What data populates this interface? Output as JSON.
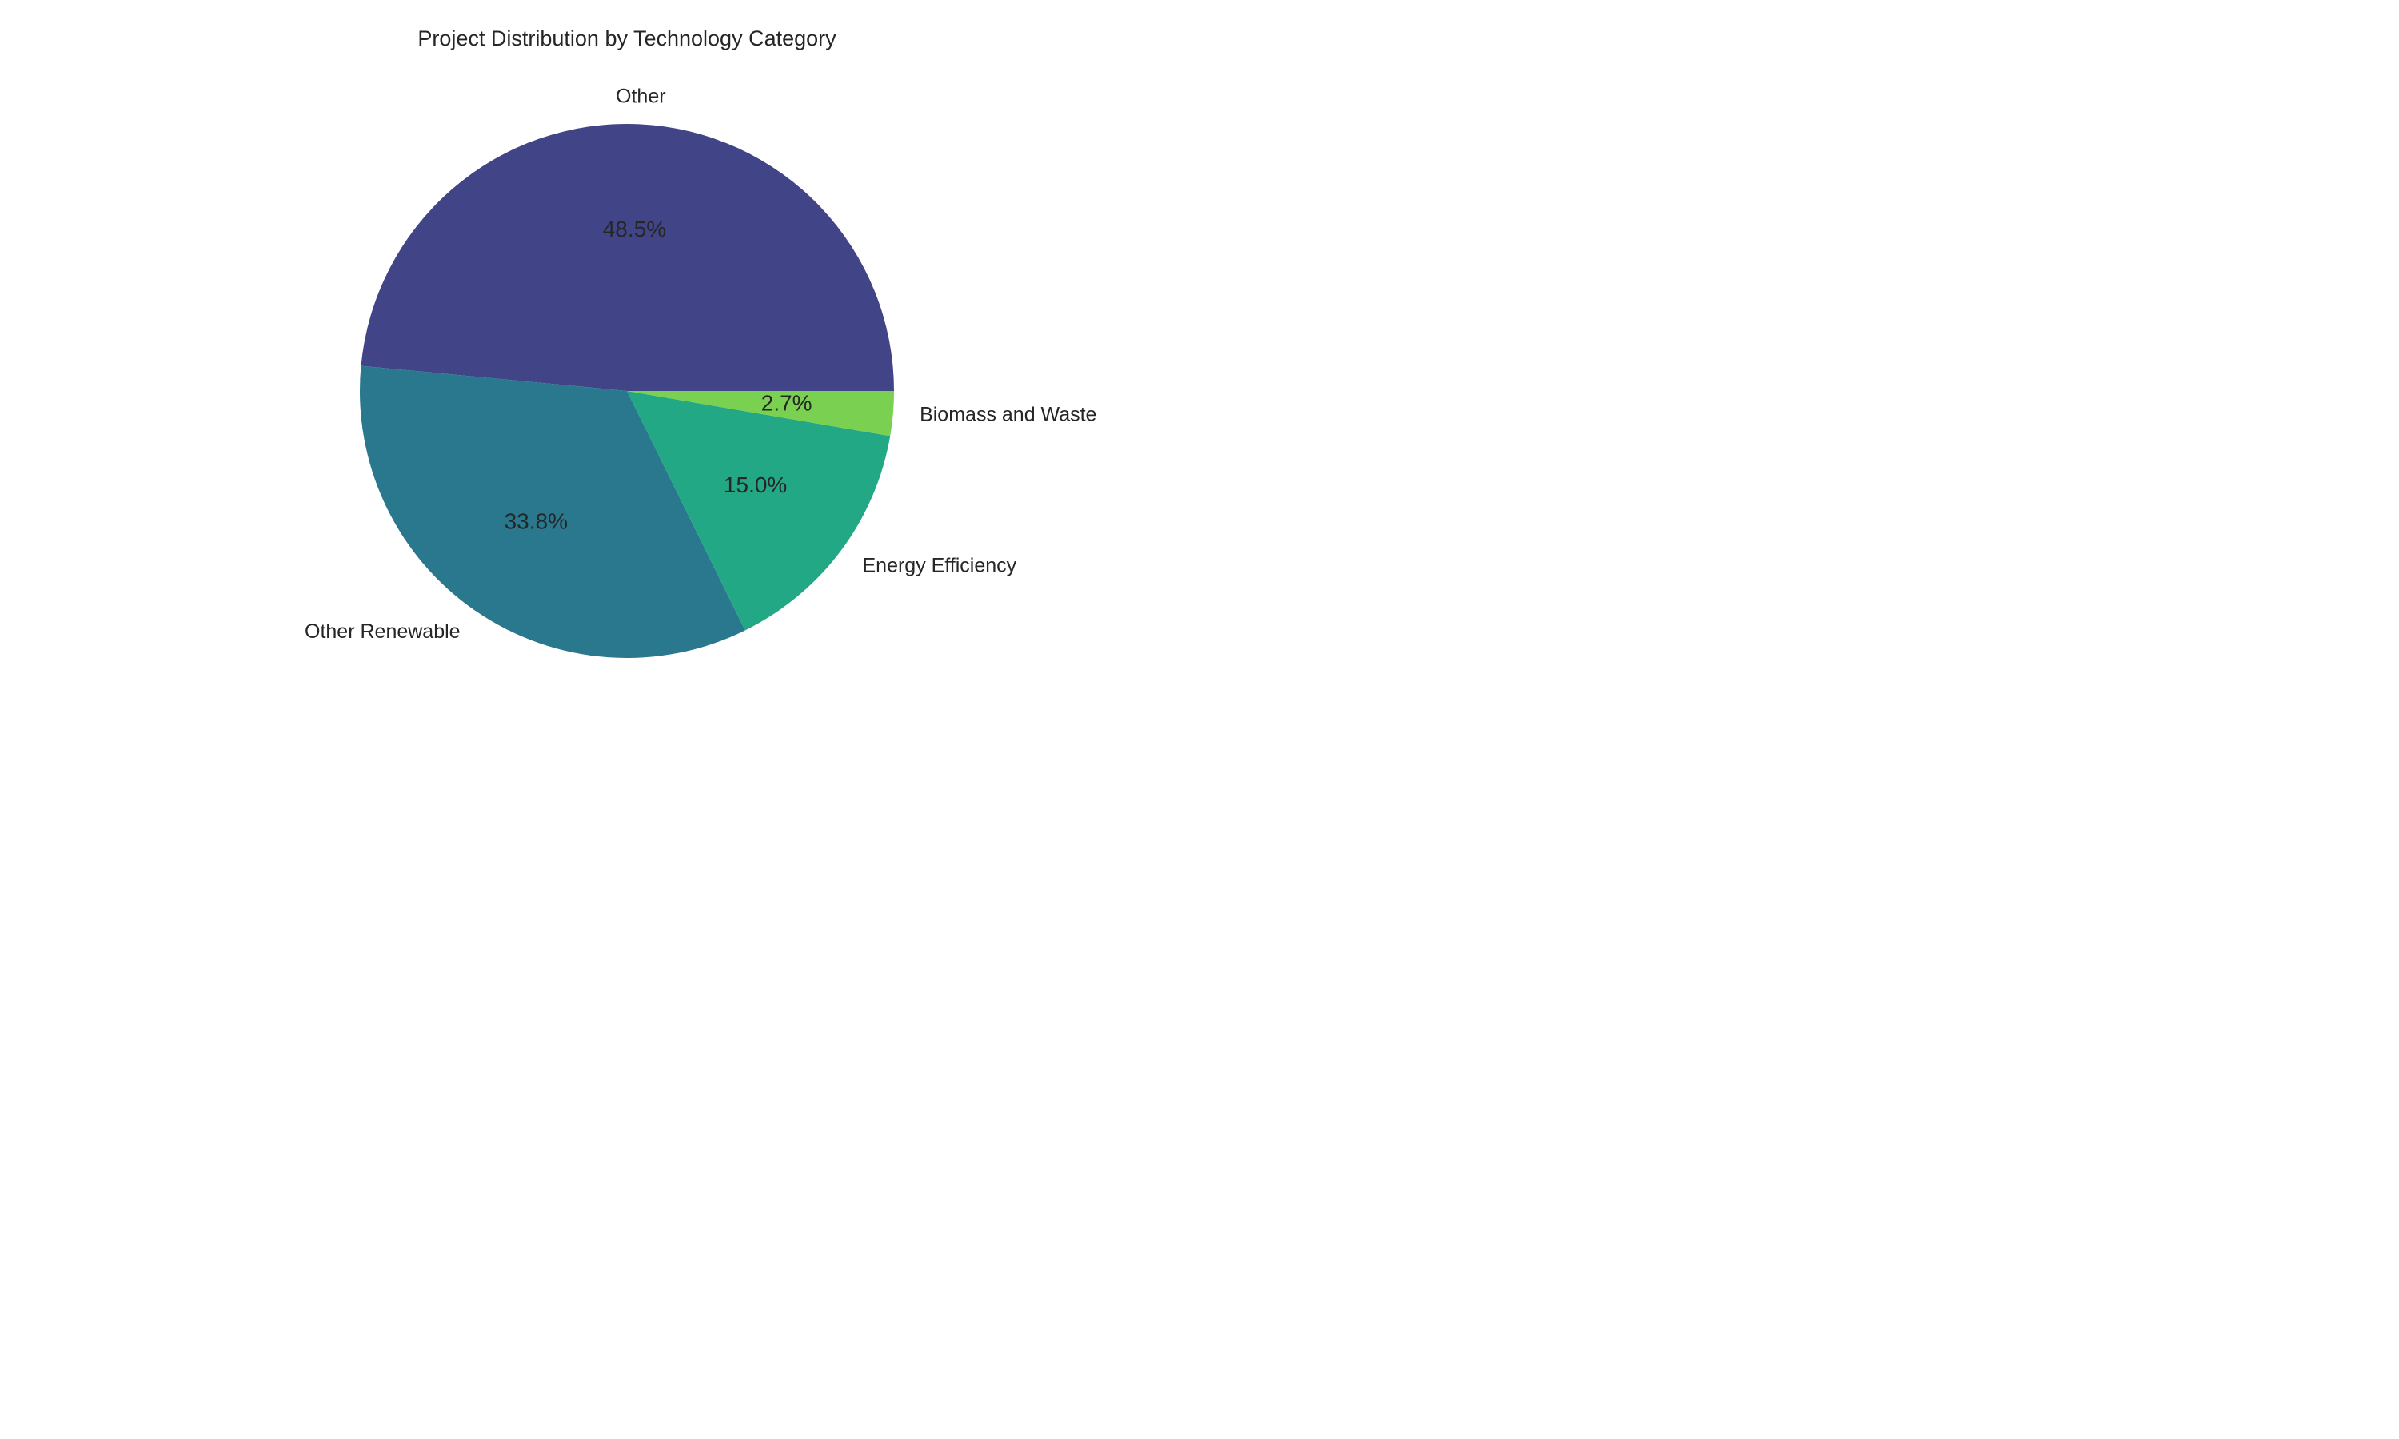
{
  "chart_data": {
    "type": "pie",
    "title": "Project Distribution by Technology Category",
    "slices": [
      {
        "label": "Other",
        "value": 48.5,
        "pct_label": "48.5%",
        "color": "#414487"
      },
      {
        "label": "Other Renewable",
        "value": 33.8,
        "pct_label": "33.8%",
        "color": "#2a788e"
      },
      {
        "label": "Energy Efficiency",
        "value": 15.0,
        "pct_label": "15.0%",
        "color": "#22a884"
      },
      {
        "label": "Biomass and Waste",
        "value": 2.7,
        "pct_label": "2.7%",
        "color": "#7ad151"
      }
    ],
    "start_angle": "0° (3 o'clock)",
    "direction": "counter-clockwise",
    "legend": "none"
  }
}
